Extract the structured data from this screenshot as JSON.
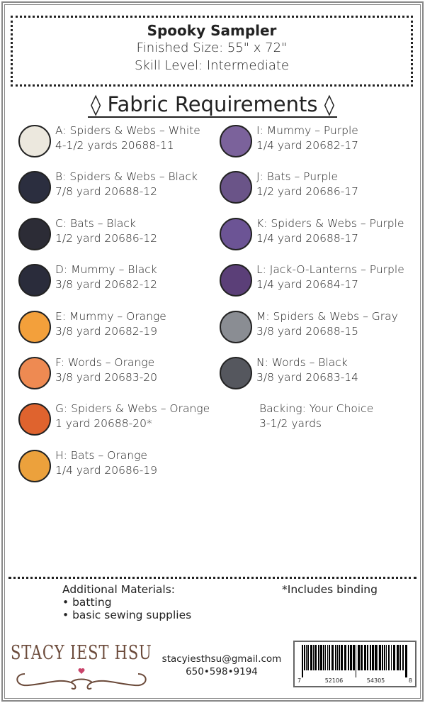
{
  "title": "Spooky Sampler",
  "finished_size": "Finished Size: 55\" x 72\"",
  "skill_level": "Skill Level: Intermediate",
  "heading": "◊ Fabric Requirements ◊",
  "fabrics_left": [
    {
      "name": "A: Spiders & Webs – White",
      "qty": "4-1/2 yards  20688-11",
      "color": "#ece8de"
    },
    {
      "name": "B: Spiders & Webs – Black",
      "qty": "7/8 yard  20688-12",
      "color": "#2b2e3f"
    },
    {
      "name": "C: Bats – Black",
      "qty": "1/2 yard  20686-12",
      "color": "#2c2c36"
    },
    {
      "name": "D: Mummy – Black",
      "qty": "3/8 yard  20682-12",
      "color": "#2a2c3b"
    },
    {
      "name": "E: Mummy – Orange",
      "qty": "3/8 yard  20682-19",
      "color": "#f3a03b"
    },
    {
      "name": "F: Words – Orange",
      "qty": "3/8 yard  20683-20",
      "color": "#ee8a52"
    },
    {
      "name": "G: Spiders & Webs – Orange",
      "qty": "1 yard  20688-20*",
      "color": "#df632e"
    },
    {
      "name": "H: Bats – Orange",
      "qty": "1/4 yard  20686-19",
      "color": "#eca13c"
    }
  ],
  "fabrics_right": [
    {
      "name": "I: Mummy – Purple",
      "qty": "1/4 yard  20682-17",
      "color": "#7b629b"
    },
    {
      "name": "J: Bats – Purple",
      "qty": "1/2 yard  20686-17",
      "color": "#6a5488"
    },
    {
      "name": "K: Spiders & Webs – Purple",
      "qty": "1/4 yard  20688-17",
      "color": "#6c5495"
    },
    {
      "name": "L: Jack-O-Lanterns – Purple",
      "qty": "1/4 yard  20684-17",
      "color": "#5b3f78"
    },
    {
      "name": "M: Spiders & Webs – Gray",
      "qty": "3/8 yard  20688-15",
      "color": "#8a8d93"
    },
    {
      "name": "N: Words – Black",
      "qty": "3/8 yard  20683-14",
      "color": "#55575e"
    }
  ],
  "backing": {
    "name": "Backing: Your Choice",
    "qty": "3-1/2 yards"
  },
  "additional": {
    "title": "Additional Materials:",
    "items": [
      "• batting",
      "• basic sewing supplies"
    ]
  },
  "binding_note": "*Includes binding",
  "logo": "STACY IEST HSU",
  "email": "stacyiesthsu@gmail.com",
  "phone": "650•598•9194",
  "barcode": {
    "d1": "7",
    "d2": "52106",
    "d3": "54305",
    "d4": "8"
  }
}
